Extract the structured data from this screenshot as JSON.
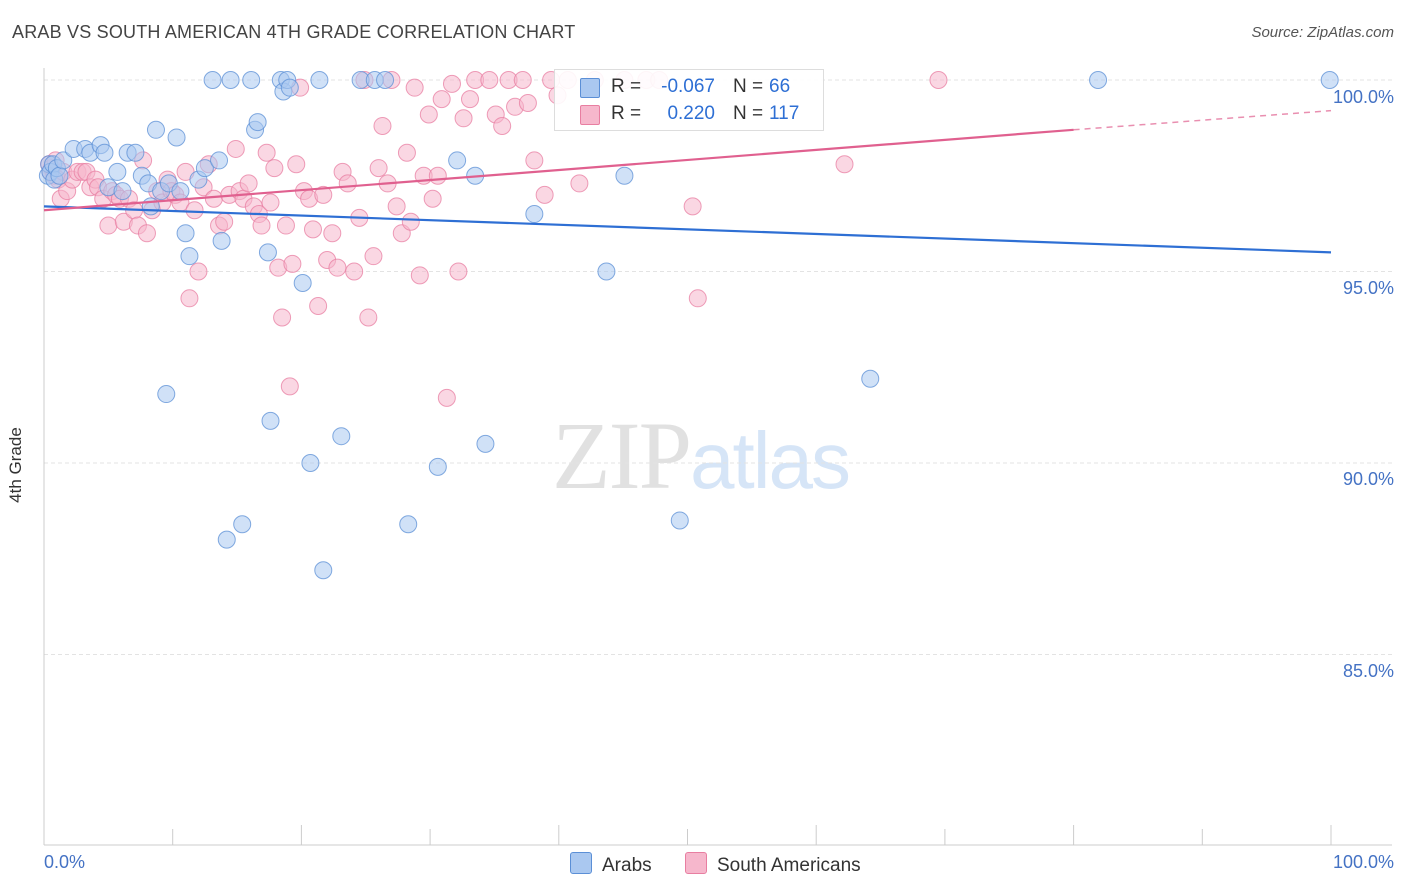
{
  "title": "ARAB VS SOUTH AMERICAN 4TH GRADE CORRELATION CHART",
  "source": "Source: ZipAtlas.com",
  "watermark": {
    "zip": "ZIP",
    "atlas": "atlas"
  },
  "legend": {
    "rows": [
      {
        "r_label": "R =",
        "r_value": "-0.067",
        "n_label": "N =",
        "n_value": "66"
      },
      {
        "r_label": "R =",
        "r_value": "0.220",
        "n_label": "N =",
        "n_value": "117"
      }
    ],
    "bottom": [
      "Arabs",
      "South Americans"
    ]
  },
  "colors": {
    "arabs_fill": "#aac8f0",
    "arabs_stroke": "#5b8fd6",
    "arabs_line": "#2e6fd4",
    "south_fill": "#f6b7cc",
    "south_stroke": "#e87ea1",
    "south_line": "#e0608f",
    "tick_text": "#4472c4"
  },
  "chart_data": {
    "type": "scatter",
    "title": "ARAB VS SOUTH AMERICAN 4TH GRADE CORRELATION CHART",
    "xlabel": "",
    "ylabel": "4th Grade",
    "xlim": [
      0,
      100
    ],
    "ylim": [
      80.5,
      100.4
    ],
    "x_tick_labels": [
      "0.0%",
      "100.0%"
    ],
    "y_ticks": [
      100,
      95,
      90,
      85
    ],
    "y_tick_labels": [
      "100.0%",
      "95.0%",
      "90.0%",
      "85.0%"
    ],
    "grid": true,
    "series": [
      {
        "name": "Arabs",
        "trend": {
          "x": [
            0,
            100
          ],
          "y": [
            96.7,
            95.5
          ]
        },
        "points": [
          [
            0.3,
            97.5
          ],
          [
            0.4,
            97.8
          ],
          [
            0.5,
            97.6
          ],
          [
            0.7,
            97.8
          ],
          [
            0.8,
            97.4
          ],
          [
            1.0,
            97.7
          ],
          [
            1.2,
            97.5
          ],
          [
            1.5,
            97.9
          ],
          [
            2.3,
            98.2
          ],
          [
            3.2,
            98.2
          ],
          [
            3.6,
            98.1
          ],
          [
            4.4,
            98.3
          ],
          [
            4.7,
            98.1
          ],
          [
            5.0,
            97.2
          ],
          [
            5.7,
            97.6
          ],
          [
            6.1,
            97.1
          ],
          [
            6.5,
            98.1
          ],
          [
            7.1,
            98.1
          ],
          [
            7.6,
            97.5
          ],
          [
            8.1,
            97.3
          ],
          [
            8.3,
            96.7
          ],
          [
            8.7,
            98.7
          ],
          [
            9.1,
            97.1
          ],
          [
            9.5,
            91.8
          ],
          [
            9.7,
            97.3
          ],
          [
            10.3,
            98.5
          ],
          [
            10.6,
            97.1
          ],
          [
            11.0,
            96.0
          ],
          [
            11.3,
            95.4
          ],
          [
            12.0,
            97.4
          ],
          [
            12.5,
            97.7
          ],
          [
            13.1,
            100.0
          ],
          [
            13.6,
            97.9
          ],
          [
            13.8,
            95.8
          ],
          [
            14.2,
            88.0
          ],
          [
            14.5,
            100.0
          ],
          [
            15.4,
            88.4
          ],
          [
            16.1,
            100.0
          ],
          [
            16.4,
            98.7
          ],
          [
            16.6,
            98.9
          ],
          [
            17.4,
            95.5
          ],
          [
            17.6,
            91.1
          ],
          [
            18.4,
            100.0
          ],
          [
            18.6,
            99.7
          ],
          [
            18.9,
            100.0
          ],
          [
            19.1,
            99.8
          ],
          [
            20.1,
            94.7
          ],
          [
            20.7,
            90.0
          ],
          [
            21.4,
            100.0
          ],
          [
            21.7,
            87.2
          ],
          [
            23.1,
            90.7
          ],
          [
            24.6,
            100.0
          ],
          [
            25.7,
            100.0
          ],
          [
            26.5,
            100.0
          ],
          [
            28.3,
            88.4
          ],
          [
            30.6,
            89.9
          ],
          [
            32.1,
            97.9
          ],
          [
            33.5,
            97.5
          ],
          [
            34.3,
            90.5
          ],
          [
            38.1,
            96.5
          ],
          [
            43.7,
            95.0
          ],
          [
            45.1,
            97.5
          ],
          [
            49.4,
            88.5
          ],
          [
            64.2,
            92.2
          ],
          [
            81.9,
            100.0
          ],
          [
            99.9,
            100.0
          ]
        ]
      },
      {
        "name": "South Americans",
        "trend": {
          "x": [
            0,
            80
          ],
          "y": [
            96.6,
            98.7
          ]
        },
        "trend_dashed": {
          "x": [
            80,
            100
          ],
          "y": [
            98.7,
            99.2
          ]
        },
        "points": [
          [
            0.4,
            97.8
          ],
          [
            0.5,
            97.6
          ],
          [
            0.6,
            97.7
          ],
          [
            0.8,
            97.5
          ],
          [
            0.9,
            97.9
          ],
          [
            1.1,
            97.4
          ],
          [
            1.3,
            96.9
          ],
          [
            1.5,
            97.6
          ],
          [
            1.8,
            97.1
          ],
          [
            2.2,
            97.4
          ],
          [
            2.6,
            97.6
          ],
          [
            3.0,
            97.6
          ],
          [
            3.3,
            97.6
          ],
          [
            3.6,
            97.2
          ],
          [
            4.0,
            97.4
          ],
          [
            4.2,
            97.2
          ],
          [
            4.6,
            96.9
          ],
          [
            5.0,
            96.2
          ],
          [
            5.3,
            97.1
          ],
          [
            5.6,
            97.0
          ],
          [
            5.9,
            96.9
          ],
          [
            6.2,
            96.3
          ],
          [
            6.6,
            96.9
          ],
          [
            7.0,
            96.6
          ],
          [
            7.3,
            96.2
          ],
          [
            7.7,
            97.9
          ],
          [
            8.0,
            96.0
          ],
          [
            8.4,
            96.6
          ],
          [
            8.8,
            97.1
          ],
          [
            9.2,
            96.8
          ],
          [
            9.6,
            97.4
          ],
          [
            9.9,
            97.1
          ],
          [
            10.2,
            97.0
          ],
          [
            10.6,
            96.8
          ],
          [
            11.0,
            97.6
          ],
          [
            11.3,
            94.3
          ],
          [
            11.7,
            96.6
          ],
          [
            12.0,
            95.0
          ],
          [
            12.4,
            97.2
          ],
          [
            12.8,
            97.8
          ],
          [
            13.2,
            96.9
          ],
          [
            13.6,
            96.2
          ],
          [
            14.0,
            96.3
          ],
          [
            14.4,
            97.0
          ],
          [
            14.9,
            98.2
          ],
          [
            15.2,
            97.1
          ],
          [
            15.5,
            96.9
          ],
          [
            15.9,
            97.3
          ],
          [
            16.3,
            96.7
          ],
          [
            16.7,
            96.5
          ],
          [
            16.9,
            96.2
          ],
          [
            17.3,
            98.1
          ],
          [
            17.6,
            96.8
          ],
          [
            17.9,
            97.7
          ],
          [
            18.2,
            95.1
          ],
          [
            18.5,
            93.8
          ],
          [
            18.8,
            96.2
          ],
          [
            19.1,
            92.0
          ],
          [
            19.3,
            95.2
          ],
          [
            19.6,
            97.8
          ],
          [
            19.9,
            99.8
          ],
          [
            20.2,
            97.1
          ],
          [
            20.6,
            96.9
          ],
          [
            20.9,
            96.1
          ],
          [
            21.3,
            94.1
          ],
          [
            21.7,
            97.0
          ],
          [
            22.0,
            95.3
          ],
          [
            22.4,
            96.0
          ],
          [
            22.8,
            95.1
          ],
          [
            23.2,
            97.6
          ],
          [
            23.6,
            97.3
          ],
          [
            24.1,
            95.0
          ],
          [
            24.5,
            96.4
          ],
          [
            24.9,
            100.0
          ],
          [
            25.2,
            93.8
          ],
          [
            25.6,
            95.4
          ],
          [
            26.0,
            97.7
          ],
          [
            26.3,
            98.8
          ],
          [
            26.7,
            97.3
          ],
          [
            27.0,
            100.0
          ],
          [
            27.4,
            96.7
          ],
          [
            27.8,
            96.0
          ],
          [
            28.2,
            98.1
          ],
          [
            28.5,
            96.3
          ],
          [
            28.8,
            99.8
          ],
          [
            29.2,
            94.9
          ],
          [
            29.5,
            97.5
          ],
          [
            29.9,
            99.1
          ],
          [
            30.2,
            96.9
          ],
          [
            30.6,
            97.5
          ],
          [
            30.9,
            99.5
          ],
          [
            31.3,
            91.7
          ],
          [
            31.7,
            99.9
          ],
          [
            32.2,
            95.0
          ],
          [
            32.6,
            99.0
          ],
          [
            33.1,
            99.5
          ],
          [
            33.5,
            100.0
          ],
          [
            34.6,
            100.0
          ],
          [
            35.1,
            99.1
          ],
          [
            35.6,
            98.8
          ],
          [
            36.1,
            100.0
          ],
          [
            36.6,
            99.3
          ],
          [
            37.2,
            100.0
          ],
          [
            37.6,
            99.4
          ],
          [
            38.1,
            97.9
          ],
          [
            38.9,
            97.0
          ],
          [
            39.4,
            100.0
          ],
          [
            39.9,
            99.6
          ],
          [
            40.7,
            100.0
          ],
          [
            41.6,
            97.3
          ],
          [
            42.8,
            100.0
          ],
          [
            45.1,
            100.0
          ],
          [
            46.8,
            100.0
          ],
          [
            47.8,
            100.0
          ],
          [
            50.4,
            96.7
          ],
          [
            50.8,
            94.3
          ],
          [
            62.2,
            97.8
          ],
          [
            69.5,
            100.0
          ]
        ]
      }
    ]
  }
}
